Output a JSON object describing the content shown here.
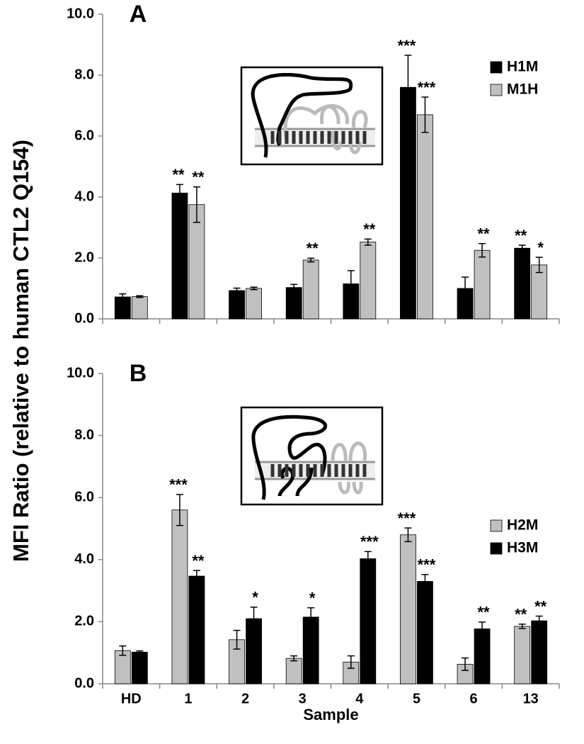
{
  "ylabel": "MFI Ratio (relative to human CTL2 Q154)",
  "chart_data": [
    {
      "type": "bar",
      "panel_label": "A",
      "ylim": [
        0,
        10
      ],
      "yticks": [
        {
          "value": 0,
          "label": "0.0"
        },
        {
          "value": 2,
          "label": "2.0"
        },
        {
          "value": 4,
          "label": "4.0"
        },
        {
          "value": 6,
          "label": "6.0"
        },
        {
          "value": 8,
          "label": "8.0"
        },
        {
          "value": 10,
          "label": "10.0"
        }
      ],
      "legend": "upper right",
      "series": [
        {
          "name": "H1M",
          "color": "#000000",
          "values": [
            0.72,
            4.13,
            0.93,
            1.03,
            1.15,
            7.6,
            1.0,
            2.32
          ],
          "errors": [
            0.1,
            0.28,
            0.08,
            0.1,
            0.43,
            1.05,
            0.37,
            0.1
          ],
          "significance": [
            null,
            "**",
            null,
            null,
            null,
            "***",
            null,
            "**"
          ]
        },
        {
          "name": "M1H",
          "color": "#c0c0c0",
          "values": [
            0.73,
            3.75,
            1.0,
            1.93,
            2.52,
            6.7,
            2.25,
            1.77
          ],
          "errors": [
            0.03,
            0.58,
            0.04,
            0.06,
            0.1,
            0.58,
            0.22,
            0.25
          ],
          "significance": [
            null,
            "**",
            null,
            "**",
            "**",
            "***",
            "**",
            "*"
          ]
        }
      ]
    },
    {
      "type": "bar",
      "panel_label": "B",
      "xlabel": "Sample",
      "categories": [
        "HD",
        "1",
        "2",
        "3",
        "4",
        "5",
        "6",
        "13"
      ],
      "ylim": [
        0,
        10
      ],
      "yticks": [
        {
          "value": 0,
          "label": "0.0"
        },
        {
          "value": 2,
          "label": "2.0"
        },
        {
          "value": 4,
          "label": "4.0"
        },
        {
          "value": 6,
          "label": "6.0"
        },
        {
          "value": 8,
          "label": "8.0"
        },
        {
          "value": 10,
          "label": "10.0"
        }
      ],
      "legend": "center right",
      "series": [
        {
          "name": "H2M",
          "color": "#c0c0c0",
          "values": [
            1.07,
            5.6,
            1.42,
            0.82,
            0.7,
            4.8,
            0.63,
            1.85
          ],
          "errors": [
            0.15,
            0.5,
            0.3,
            0.08,
            0.2,
            0.22,
            0.2,
            0.07
          ],
          "significance": [
            null,
            "***",
            null,
            null,
            null,
            "***",
            null,
            "**"
          ]
        },
        {
          "name": "H3M",
          "color": "#000000",
          "values": [
            1.02,
            3.47,
            2.1,
            2.15,
            4.03,
            3.3,
            1.77,
            2.03
          ],
          "errors": [
            0.04,
            0.18,
            0.37,
            0.3,
            0.23,
            0.22,
            0.22,
            0.15
          ],
          "significance": [
            null,
            "**",
            "*",
            "*",
            "***",
            "***",
            "**",
            "**"
          ]
        }
      ]
    }
  ]
}
